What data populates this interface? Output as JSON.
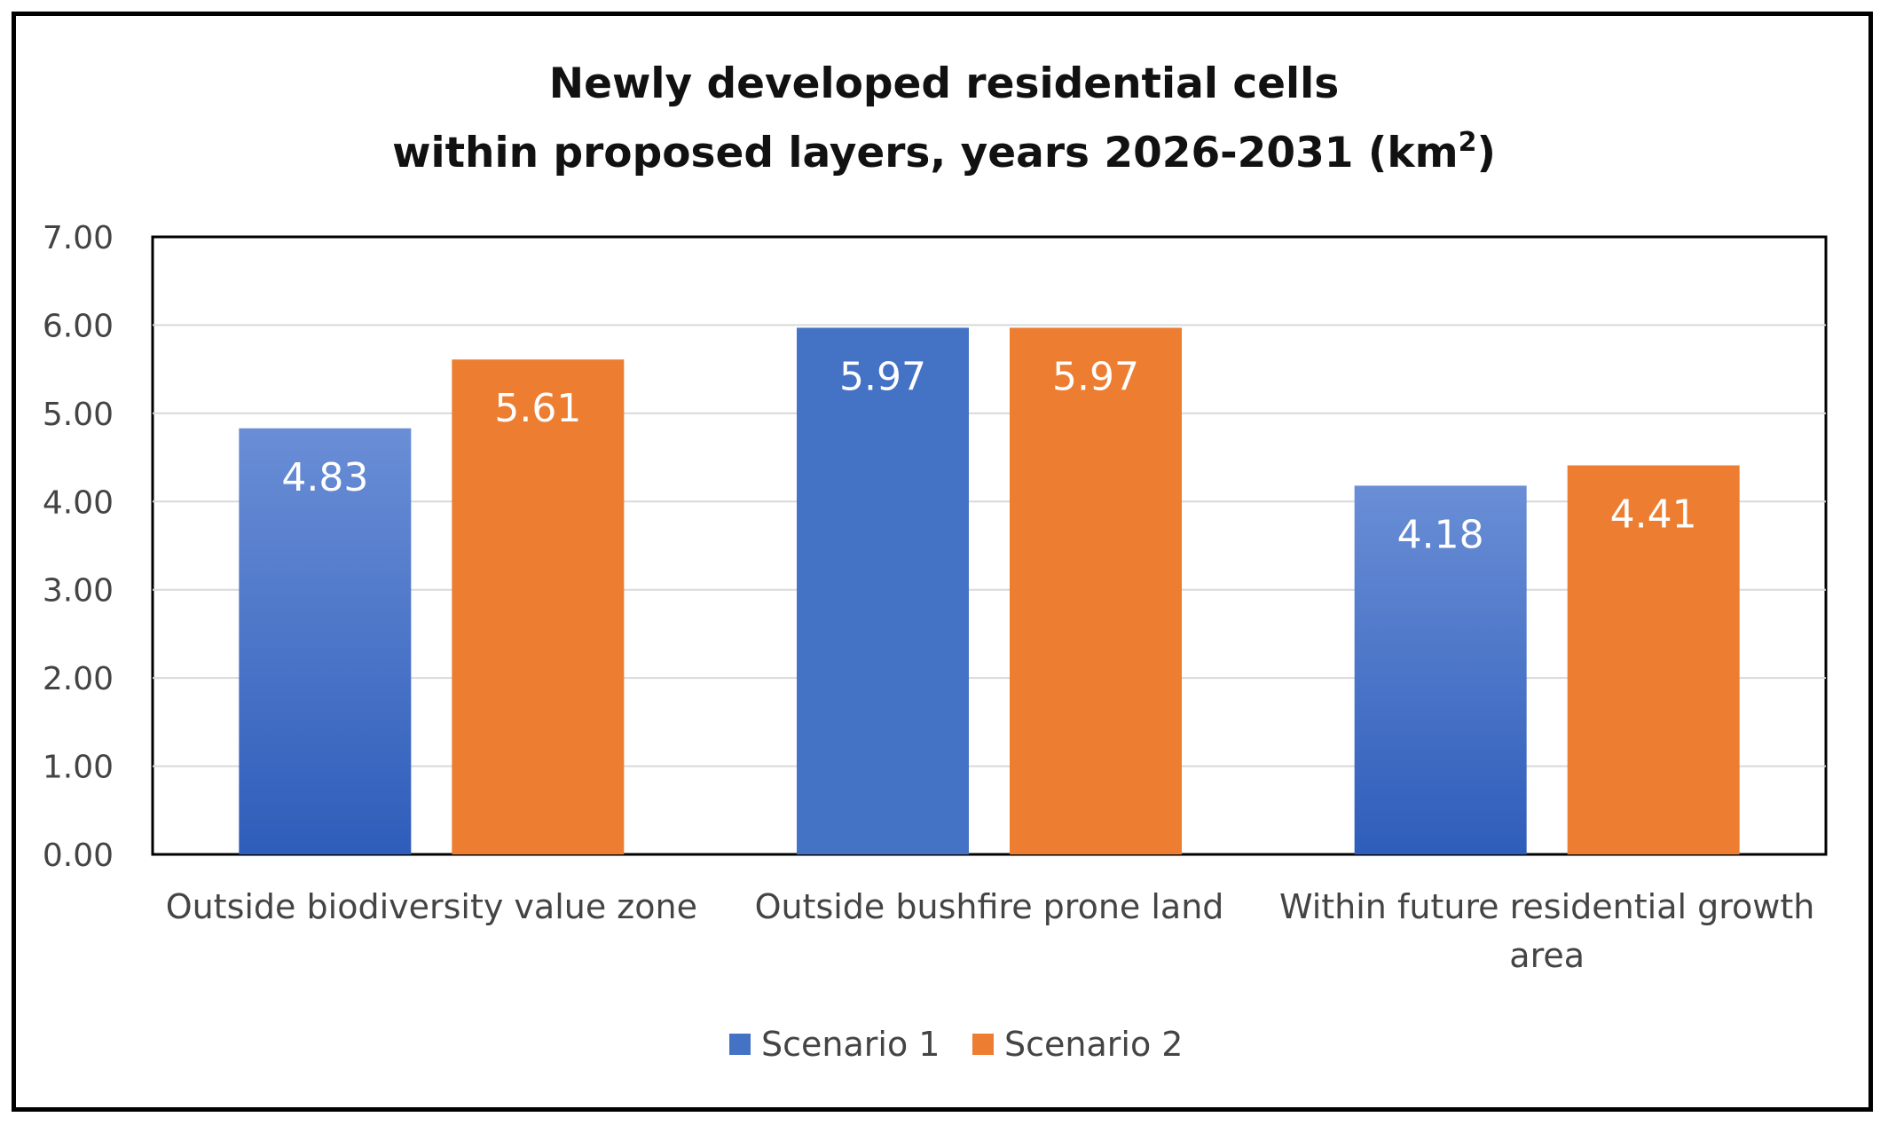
{
  "chart_data": {
    "type": "bar",
    "title_lines": [
      "Newly developed residential cells",
      "within proposed layers, years 2026-2031 (km",
      "2",
      ")"
    ],
    "categories": [
      [
        "Outside biodiversity value zone"
      ],
      [
        "Outside bushfire prone land"
      ],
      [
        "Within future residential growth",
        "area"
      ]
    ],
    "series": [
      {
        "name": "Scenario 1",
        "color": "#4472C4",
        "values": [
          4.83,
          5.97,
          4.18
        ],
        "labels": [
          "4.83",
          "5.97",
          "4.18"
        ]
      },
      {
        "name": "Scenario 2",
        "color": "#ED7D31",
        "values": [
          5.61,
          5.97,
          4.41
        ],
        "labels": [
          "5.61",
          "5.97",
          "4.41"
        ]
      }
    ],
    "ylim": [
      0,
      7
    ],
    "yticks": [
      "0.00",
      "1.00",
      "2.00",
      "3.00",
      "4.00",
      "5.00",
      "6.00",
      "7.00"
    ],
    "grid": true,
    "legend": "bottom-center"
  }
}
